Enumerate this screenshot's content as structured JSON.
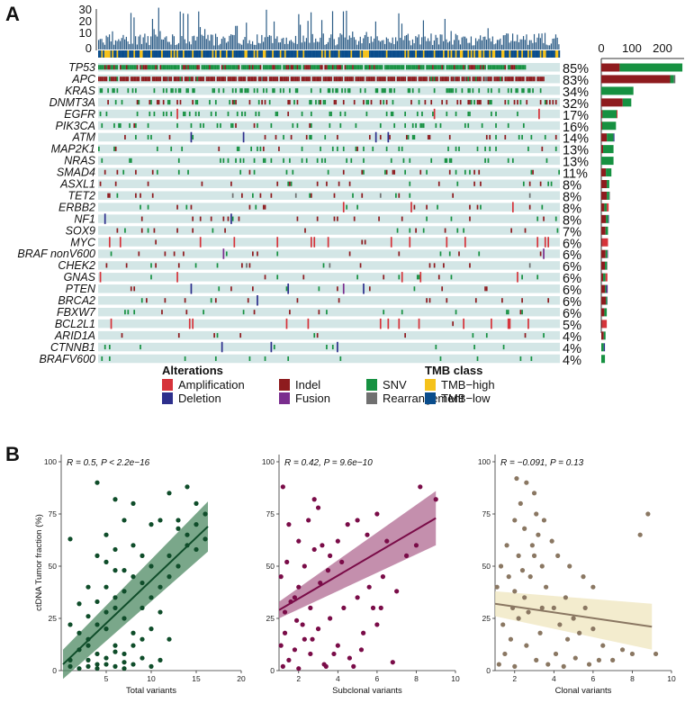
{
  "panels": {
    "a": "A",
    "b": "B"
  },
  "oncoprint": {
    "tmb_axis_ticks": [
      "30",
      "20",
      "10",
      "0"
    ],
    "count_axis_ticks": [
      "0",
      "100",
      "200"
    ],
    "genes": [
      "TP53",
      "APC",
      "KRAS",
      "DNMT3A",
      "EGFR",
      "PIK3CA",
      "ATM",
      "MAP2K1",
      "NRAS",
      "SMAD4",
      "ASXL1",
      "TET2",
      "ERBB2",
      "NF1",
      "SOX9",
      "MYC",
      "BRAF nonV600",
      "CHEK2",
      "GNAS",
      "PTEN",
      "BRCA2",
      "FBXW7",
      "BCL2L1",
      "ARID1A",
      "CTNNB1",
      "BRAFV600"
    ],
    "percentages": [
      "85%",
      "83%",
      "34%",
      "32%",
      "17%",
      "16%",
      "14%",
      "13%",
      "13%",
      "11%",
      "8%",
      "8%",
      "8%",
      "8%",
      "7%",
      "6%",
      "6%",
      "6%",
      "6%",
      "6%",
      "6%",
      "6%",
      "5%",
      "4%",
      "4%",
      "4%"
    ],
    "counts": [
      {
        "indel": 60,
        "snv": 205,
        "amp": 0,
        "del": 0,
        "fusion": 0,
        "rearr": 0
      },
      {
        "indel": 225,
        "snv": 12,
        "amp": 0,
        "del": 0,
        "fusion": 0,
        "rearr": 5
      },
      {
        "indel": 0,
        "snv": 105,
        "amp": 0,
        "del": 0,
        "fusion": 0,
        "rearr": 0
      },
      {
        "indel": 70,
        "snv": 28,
        "amp": 0,
        "del": 0,
        "fusion": 0,
        "rearr": 0
      },
      {
        "indel": 4,
        "snv": 46,
        "amp": 3,
        "del": 0,
        "fusion": 0,
        "rearr": 0
      },
      {
        "indel": 3,
        "snv": 45,
        "amp": 0,
        "del": 0,
        "fusion": 0,
        "rearr": 0
      },
      {
        "indel": 18,
        "snv": 22,
        "amp": 0,
        "del": 3,
        "fusion": 0,
        "rearr": 0
      },
      {
        "indel": 6,
        "snv": 34,
        "amp": 0,
        "del": 0,
        "fusion": 0,
        "rearr": 0
      },
      {
        "indel": 0,
        "snv": 40,
        "amp": 0,
        "del": 0,
        "fusion": 0,
        "rearr": 0
      },
      {
        "indel": 15,
        "snv": 18,
        "amp": 0,
        "del": 0,
        "fusion": 0,
        "rearr": 0
      },
      {
        "indel": 18,
        "snv": 8,
        "amp": 0,
        "del": 0,
        "fusion": 0,
        "rearr": 0
      },
      {
        "indel": 18,
        "snv": 8,
        "amp": 0,
        "del": 0,
        "fusion": 0,
        "rearr": 2
      },
      {
        "indel": 10,
        "snv": 8,
        "amp": 6,
        "del": 0,
        "fusion": 0,
        "rearr": 0
      },
      {
        "indel": 15,
        "snv": 8,
        "amp": 0,
        "del": 2,
        "fusion": 0,
        "rearr": 0
      },
      {
        "indel": 14,
        "snv": 8,
        "amp": 0,
        "del": 0,
        "fusion": 0,
        "rearr": 0
      },
      {
        "indel": 4,
        "snv": 0,
        "amp": 18,
        "del": 0,
        "fusion": 0,
        "rearr": 0
      },
      {
        "indel": 14,
        "snv": 6,
        "amp": 0,
        "del": 0,
        "fusion": 2,
        "rearr": 0
      },
      {
        "indel": 12,
        "snv": 6,
        "amp": 0,
        "del": 0,
        "fusion": 0,
        "rearr": 2
      },
      {
        "indel": 6,
        "snv": 8,
        "amp": 6,
        "del": 0,
        "fusion": 0,
        "rearr": 0
      },
      {
        "indel": 12,
        "snv": 4,
        "amp": 0,
        "del": 3,
        "fusion": 2,
        "rearr": 0
      },
      {
        "indel": 15,
        "snv": 4,
        "amp": 0,
        "del": 1,
        "fusion": 0,
        "rearr": 0
      },
      {
        "indel": 10,
        "snv": 8,
        "amp": 0,
        "del": 0,
        "fusion": 0,
        "rearr": 0
      },
      {
        "indel": 4,
        "snv": 0,
        "amp": 14,
        "del": 0,
        "fusion": 0,
        "rearr": 0
      },
      {
        "indel": 8,
        "snv": 6,
        "amp": 0,
        "del": 0,
        "fusion": 0,
        "rearr": 0
      },
      {
        "indel": 0,
        "snv": 8,
        "amp": 0,
        "del": 4,
        "fusion": 0,
        "rearr": 0
      },
      {
        "indel": 0,
        "snv": 12,
        "amp": 0,
        "del": 0,
        "fusion": 0,
        "rearr": 0
      }
    ]
  },
  "legend": {
    "alterations_title": "Alterations",
    "items": [
      {
        "label": "Amplification",
        "color": "#d6333a"
      },
      {
        "label": "Deletion",
        "color": "#2d2f8c"
      },
      {
        "label": "Indel",
        "color": "#8e1b1e"
      },
      {
        "label": "Fusion",
        "color": "#7a2d8e"
      },
      {
        "label": "SNV",
        "color": "#169141"
      },
      {
        "label": "Rearrangement",
        "color": "#707070"
      }
    ],
    "tmb_title": "TMB class",
    "tmb_items": [
      {
        "label": "TMB−high",
        "color": "#f5c21b"
      },
      {
        "label": "TMB−low",
        "color": "#0a4d8c"
      }
    ]
  },
  "colors": {
    "bar": "#2c5c86",
    "track": "#d3e6e6",
    "tmb_high": "#f5c21b",
    "tmb_low": "#0a4d8c"
  },
  "chart_data": [
    {
      "type": "scatter",
      "title": "",
      "stat_r": "R = 0.5, P < 2.2e−16",
      "xlabel": "Total variants",
      "ylabel": "ctDNA Tumor fraction (%)",
      "xlim": [
        0,
        20
      ],
      "ylim": [
        0,
        100
      ],
      "xticks": [
        "5",
        "10",
        "15",
        "20"
      ],
      "yticks": [
        "0",
        "25",
        "50",
        "75",
        "100"
      ],
      "color": "#0f4d2a",
      "band_color": "#4e8a63",
      "fit": {
        "x0": 0.2,
        "y0": 3,
        "x1": 16.3,
        "y1": 69,
        "band0": 7,
        "band1": 12
      },
      "points": [
        [
          1,
          2
        ],
        [
          1,
          5
        ],
        [
          2,
          1
        ],
        [
          3,
          2
        ],
        [
          4,
          1
        ],
        [
          5,
          3
        ],
        [
          6,
          2
        ],
        [
          7,
          1
        ],
        [
          2,
          10
        ],
        [
          3,
          15
        ],
        [
          4,
          8
        ],
        [
          5,
          20
        ],
        [
          6,
          12
        ],
        [
          7,
          25
        ],
        [
          8,
          18
        ],
        [
          9,
          30
        ],
        [
          10,
          35
        ],
        [
          11,
          28
        ],
        [
          12,
          45
        ],
        [
          13,
          50
        ],
        [
          14,
          60
        ],
        [
          15,
          70
        ],
        [
          16,
          63
        ],
        [
          3,
          40
        ],
        [
          4,
          55
        ],
        [
          5,
          65
        ],
        [
          6,
          48
        ],
        [
          7,
          72
        ],
        [
          8,
          60
        ],
        [
          9,
          55
        ],
        [
          10,
          70
        ],
        [
          11,
          72
        ],
        [
          12,
          55
        ],
        [
          13,
          68
        ],
        [
          14,
          88
        ],
        [
          15,
          80
        ],
        [
          2,
          32
        ],
        [
          3,
          26
        ],
        [
          4,
          33
        ],
        [
          5,
          40
        ],
        [
          6,
          30
        ],
        [
          7,
          38
        ],
        [
          8,
          45
        ],
        [
          9,
          42
        ],
        [
          10,
          50
        ],
        [
          11,
          40
        ],
        [
          1,
          22
        ],
        [
          2,
          18
        ],
        [
          3,
          12
        ],
        [
          4,
          22
        ],
        [
          5,
          28
        ],
        [
          6,
          35
        ],
        [
          7,
          8
        ],
        [
          8,
          12
        ],
        [
          9,
          15
        ],
        [
          10,
          20
        ],
        [
          4,
          90
        ],
        [
          6,
          82
        ],
        [
          8,
          80
        ],
        [
          12,
          85
        ],
        [
          13,
          72
        ],
        [
          1,
          63
        ],
        [
          16,
          75
        ],
        [
          14,
          65
        ],
        [
          15,
          58
        ],
        [
          5,
          52
        ],
        [
          6,
          58
        ],
        [
          7,
          48
        ],
        [
          3,
          5
        ],
        [
          4,
          3
        ],
        [
          5,
          6
        ],
        [
          6,
          9
        ],
        [
          7,
          4
        ],
        [
          8,
          3
        ],
        [
          9,
          6
        ],
        [
          10,
          2
        ],
        [
          11,
          5
        ],
        [
          12,
          15
        ]
      ]
    },
    {
      "type": "scatter",
      "title": "",
      "stat_r": "R = 0.42, P = 9.6e−10",
      "xlabel": "Subclonal variants",
      "ylabel": "",
      "xlim": [
        1,
        10
      ],
      "ylim": [
        0,
        100
      ],
      "xticks": [
        "2",
        "4",
        "6",
        "8",
        "10"
      ],
      "yticks": [
        "0",
        "25",
        "50",
        "75",
        "100"
      ],
      "color": "#7a0c48",
      "band_color": "#b06992",
      "fit": {
        "x0": 1,
        "y0": 29,
        "x1": 9,
        "y1": 73,
        "band0": 4,
        "band1": 13
      },
      "points": [
        [
          1.2,
          2
        ],
        [
          1.5,
          5
        ],
        [
          1.8,
          10
        ],
        [
          2,
          1
        ],
        [
          2.3,
          15
        ],
        [
          2.6,
          8
        ],
        [
          3,
          20
        ],
        [
          3.3,
          3
        ],
        [
          3.6,
          25
        ],
        [
          4,
          12
        ],
        [
          4.3,
          30
        ],
        [
          4.6,
          6
        ],
        [
          5,
          35
        ],
        [
          5.3,
          18
        ],
        [
          5.6,
          40
        ],
        [
          6,
          22
        ],
        [
          6.3,
          45
        ],
        [
          7,
          38
        ],
        [
          7.5,
          55
        ],
        [
          8,
          60
        ],
        [
          8.2,
          88
        ],
        [
          9,
          82
        ],
        [
          1.3,
          28
        ],
        [
          1.6,
          33
        ],
        [
          2,
          40
        ],
        [
          2.3,
          50
        ],
        [
          2.8,
          58
        ],
        [
          3.2,
          60
        ],
        [
          3.6,
          55
        ],
        [
          4,
          62
        ],
        [
          4.5,
          70
        ],
        [
          5,
          72
        ],
        [
          5.5,
          65
        ],
        [
          6,
          75
        ],
        [
          6.5,
          62
        ],
        [
          1.1,
          45
        ],
        [
          1.4,
          52
        ],
        [
          2,
          62
        ],
        [
          2.5,
          72
        ],
        [
          3,
          78
        ],
        [
          1.2,
          88
        ],
        [
          2.8,
          82
        ],
        [
          1.5,
          70
        ],
        [
          3.5,
          48
        ],
        [
          4.2,
          52
        ],
        [
          5.8,
          30
        ],
        [
          6.2,
          30
        ],
        [
          1.8,
          35
        ],
        [
          2.2,
          22
        ],
        [
          2.6,
          30
        ],
        [
          3.1,
          42
        ],
        [
          3.8,
          8
        ],
        [
          4.8,
          2
        ],
        [
          5.2,
          10
        ],
        [
          6.8,
          4
        ],
        [
          1.1,
          12
        ],
        [
          1.3,
          18
        ],
        [
          1.9,
          24
        ],
        [
          2.7,
          15
        ],
        [
          3.4,
          2
        ]
      ]
    },
    {
      "type": "scatter",
      "title": "",
      "stat_r": "R = −0.091, P = 0.13",
      "xlabel": "Clonal variants",
      "ylabel": "",
      "xlim": [
        1,
        10
      ],
      "ylim": [
        0,
        100
      ],
      "xticks": [
        "2",
        "4",
        "6",
        "8",
        "10"
      ],
      "yticks": [
        "0",
        "25",
        "50",
        "75",
        "100"
      ],
      "color": "#8a7762",
      "band_color": "#efe5bd",
      "fit": {
        "x0": 1,
        "y0": 32,
        "x1": 9,
        "y1": 21,
        "band0": 6,
        "band1": 11
      },
      "points": [
        [
          1.2,
          3
        ],
        [
          1.5,
          8
        ],
        [
          1.8,
          15
        ],
        [
          2,
          2
        ],
        [
          2.2,
          25
        ],
        [
          2.5,
          35
        ],
        [
          2.8,
          45
        ],
        [
          3,
          55
        ],
        [
          3.2,
          65
        ],
        [
          3.5,
          72
        ],
        [
          1.3,
          50
        ],
        [
          1.6,
          60
        ],
        [
          2,
          72
        ],
        [
          2.3,
          80
        ],
        [
          2.6,
          90
        ],
        [
          3,
          85
        ],
        [
          2.7,
          28
        ],
        [
          3.3,
          18
        ],
        [
          3.6,
          40
        ],
        [
          4,
          30
        ],
        [
          4.3,
          22
        ],
        [
          4.6,
          35
        ],
        [
          5,
          25
        ],
        [
          5.3,
          18
        ],
        [
          5.6,
          30
        ],
        [
          6,
          20
        ],
        [
          6.5,
          12
        ],
        [
          7,
          5
        ],
        [
          7.5,
          10
        ],
        [
          8,
          8
        ],
        [
          8.4,
          65
        ],
        [
          8.8,
          75
        ],
        [
          9.2,
          8
        ],
        [
          2,
          38
        ],
        [
          2.4,
          48
        ],
        [
          2.9,
          60
        ],
        [
          3.4,
          50
        ],
        [
          3.9,
          62
        ],
        [
          4.2,
          55
        ],
        [
          4.8,
          50
        ],
        [
          5.5,
          45
        ],
        [
          6,
          40
        ],
        [
          1.4,
          22
        ],
        [
          1.9,
          30
        ],
        [
          2.6,
          12
        ],
        [
          3.1,
          5
        ],
        [
          3.7,
          3
        ],
        [
          4.1,
          8
        ],
        [
          4.5,
          2
        ],
        [
          5.1,
          6
        ],
        [
          5.8,
          3
        ],
        [
          6.3,
          5
        ],
        [
          1.1,
          40
        ],
        [
          1.7,
          45
        ],
        [
          2.2,
          55
        ],
        [
          3.4,
          30
        ],
        [
          4.7,
          15
        ],
        [
          2.5,
          68
        ],
        [
          3.1,
          75
        ],
        [
          2.1,
          92
        ]
      ]
    }
  ]
}
